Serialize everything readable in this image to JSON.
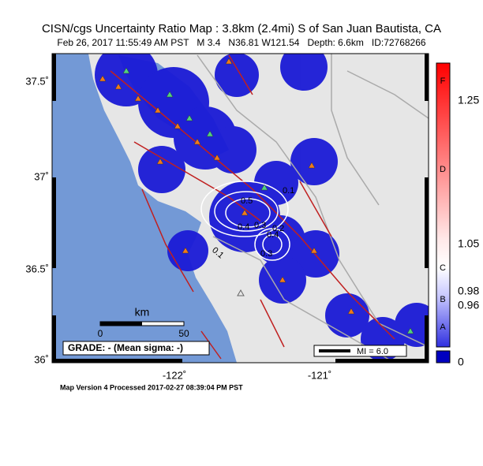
{
  "header": {
    "title": "CISN/cgs Uncertainty Ratio Map : 3.8km (2.4mi) S of San Juan Bautista, CA",
    "subtitle": "Feb 26, 2017 11:55:49 AM PST   M 3.4   N36.81 W121.54   Depth: 6.6km   ID:72768266"
  },
  "map": {
    "lat_labels": [
      "37.5˚",
      "37˚",
      "36.5˚",
      "36˚"
    ],
    "lon_labels": [
      "-122˚",
      "-121˚"
    ],
    "scale": {
      "unit": "km",
      "labels": [
        "0",
        "50"
      ]
    },
    "grade": "GRADE: - (Mean sigma: -)",
    "mi": "MI = 6.0",
    "contour_labels": [
      "0.1",
      "0.2",
      "0.3",
      "0.4",
      "0.3",
      "0.5",
      "0.4",
      "0.1"
    ]
  },
  "colorbar": {
    "grades": [
      "F",
      "D",
      "C",
      "B",
      "A"
    ],
    "values": [
      "1.25",
      "1.05",
      "0.98",
      "0.96",
      "0"
    ]
  },
  "footer": "Map Version 4 Processed 2017-02-27 08:39:04 PM PST"
}
